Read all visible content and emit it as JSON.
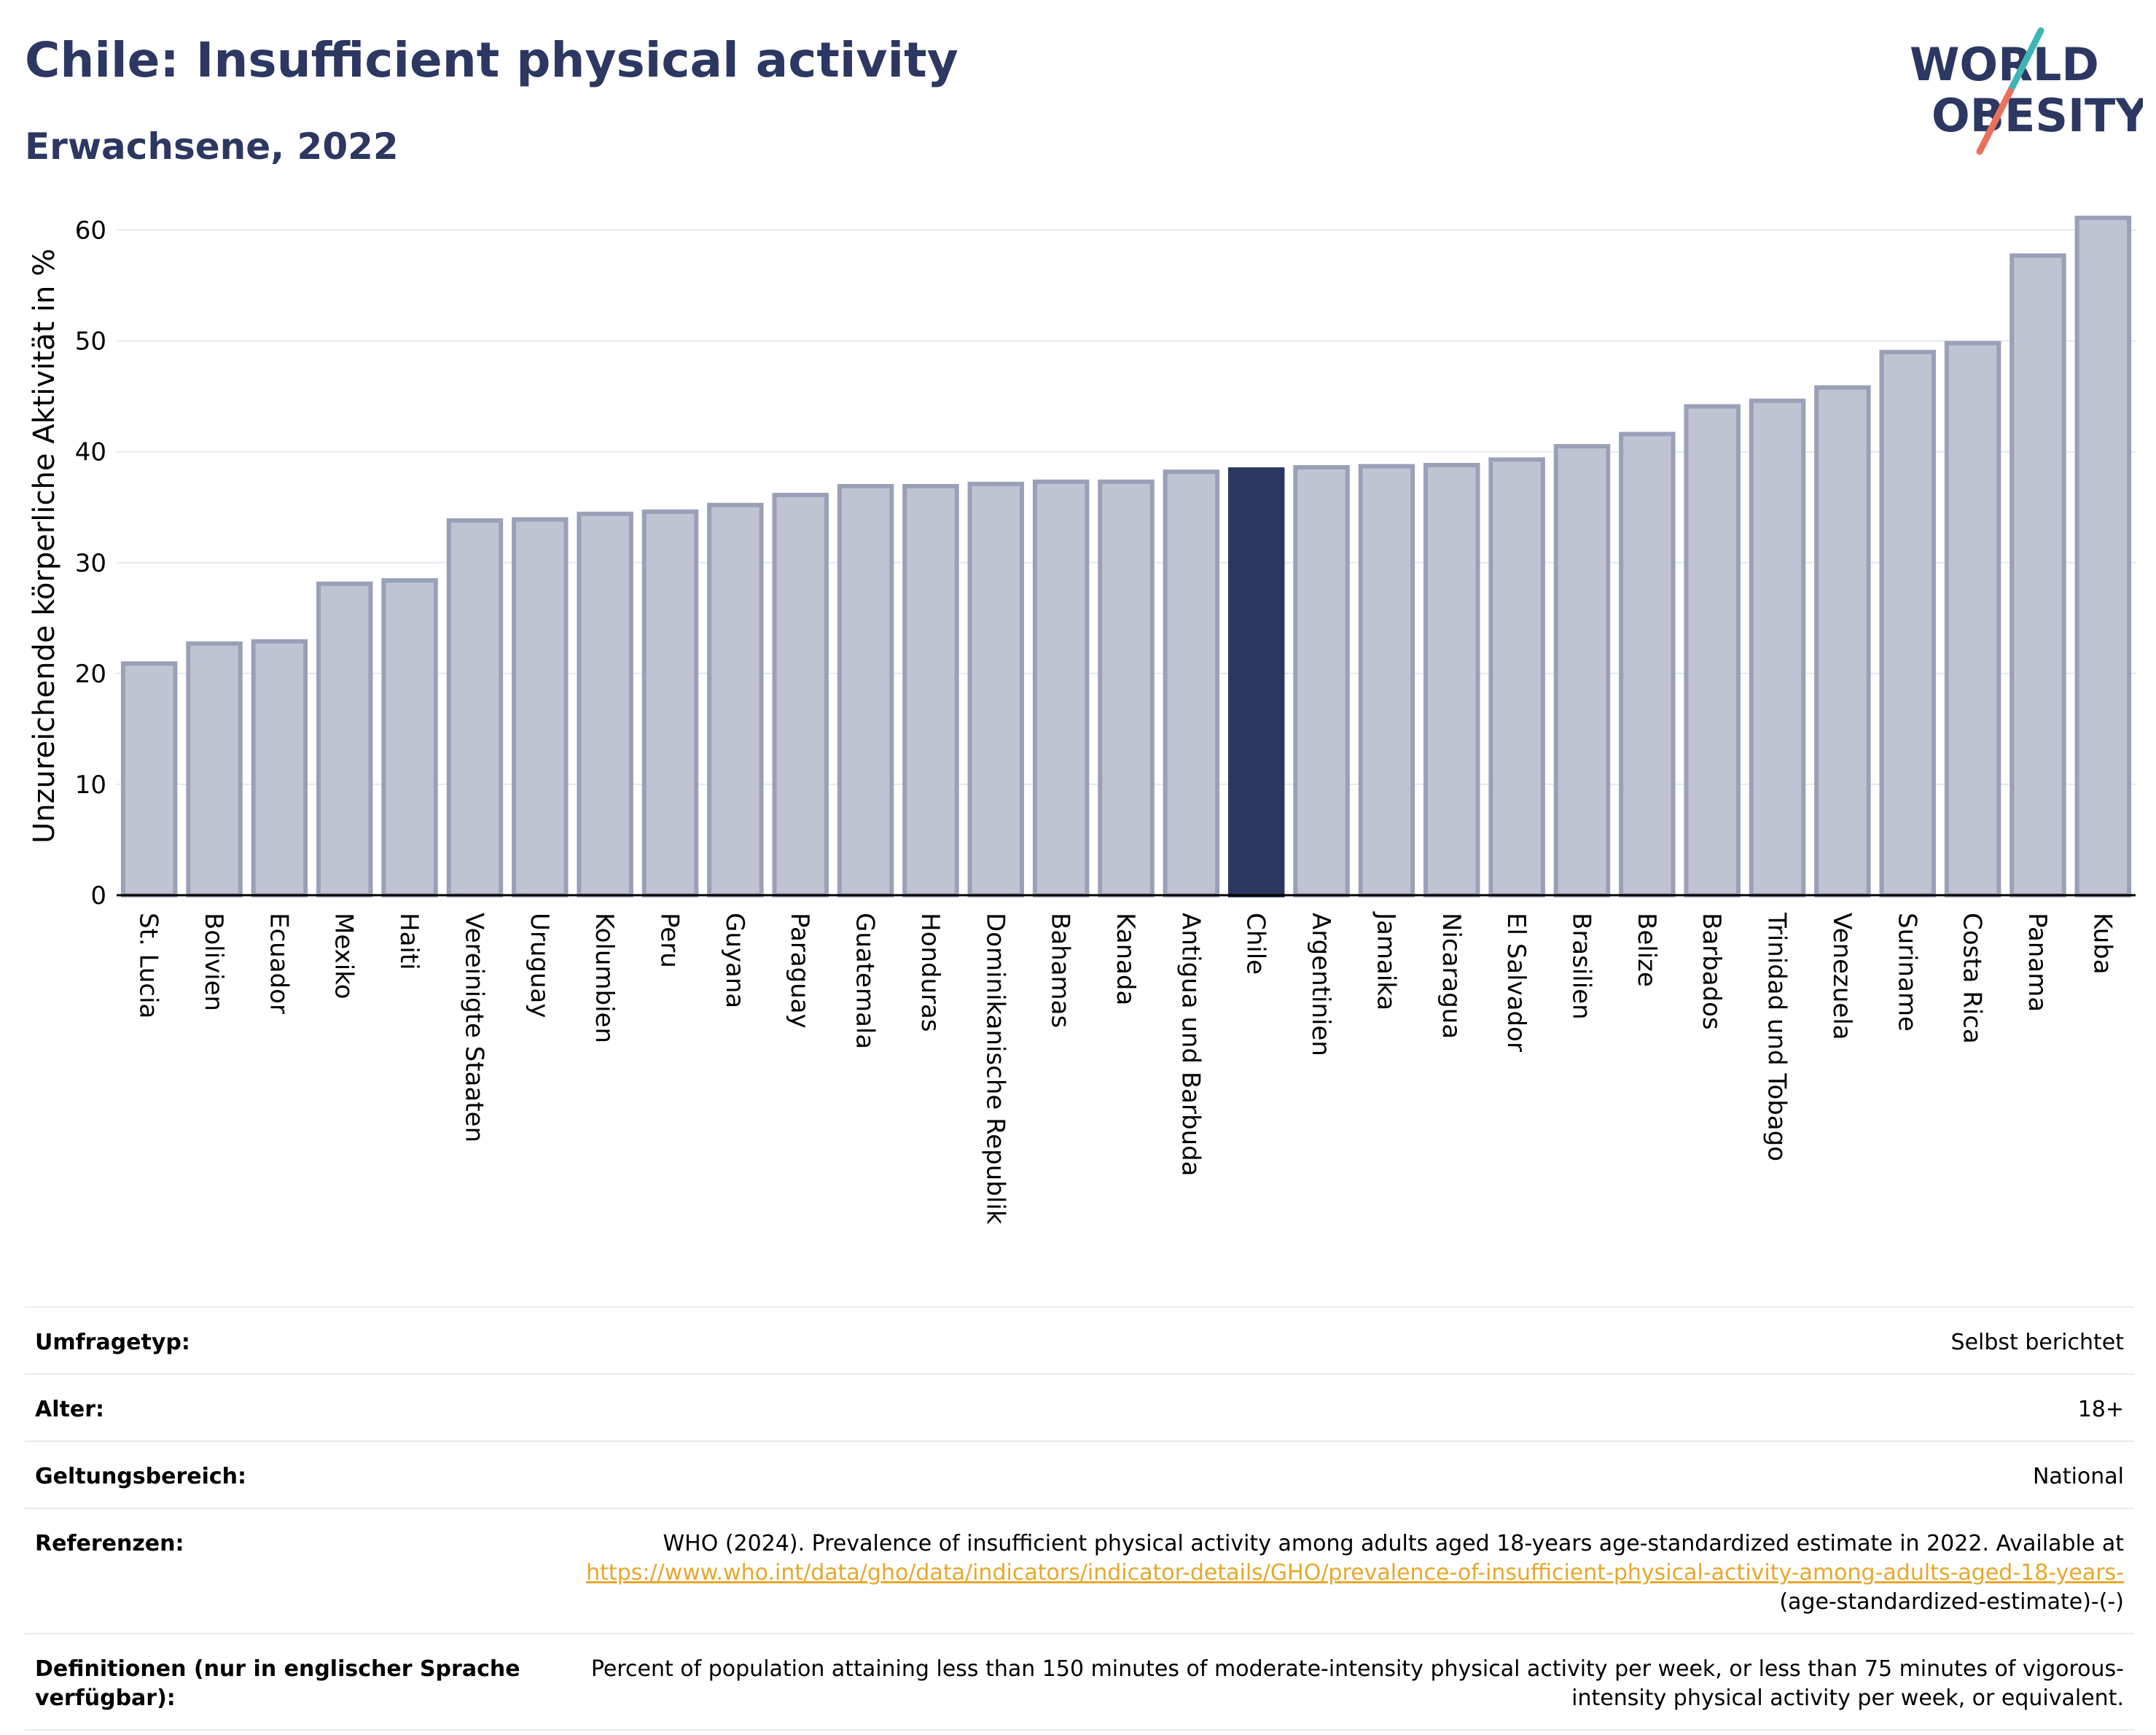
{
  "header": {
    "title": "Chile: Insufficient physical activity",
    "subtitle": "Erwachsene, 2022"
  },
  "logo": {
    "line1": "WORLD",
    "line2": "OBESITY",
    "text_color": "#2c3762",
    "slash_colors": [
      "#e9715b",
      "#3fb4b4"
    ]
  },
  "chart_data": {
    "type": "bar",
    "title": "",
    "xlabel": "",
    "ylabel": "Unzureichende körperliche Aktivität in %",
    "ylim": [
      0,
      63
    ],
    "yticks": [
      0,
      10,
      20,
      30,
      40,
      50,
      60
    ],
    "grid": true,
    "highlight": "Chile",
    "colors": {
      "default": "#c0c3d1",
      "default_stroke": "#9aa0b8",
      "highlight": "#2c3762"
    },
    "categories": [
      "St. Lucia",
      "Bolivien",
      "Ecuador",
      "Mexiko",
      "Haiti",
      "Vereinigte Staaten",
      "Uruguay",
      "Kolumbien",
      "Peru",
      "Guyana",
      "Paraguay",
      "Guatemala",
      "Honduras",
      "Dominikanische Republik",
      "Bahamas",
      "Kanada",
      "Antigua und Barbuda",
      "Chile",
      "Argentinien",
      "Jamaika",
      "Nicaragua",
      "El Salvador",
      "Brasilien",
      "Belize",
      "Barbados",
      "Trinidad und Tobago",
      "Venezuela",
      "Suriname",
      "Costa Rica",
      "Panama",
      "Kuba"
    ],
    "values": [
      20.9,
      22.7,
      22.9,
      28.1,
      28.4,
      33.8,
      33.9,
      34.4,
      34.6,
      35.2,
      36.1,
      36.9,
      36.9,
      37.1,
      37.3,
      37.3,
      38.2,
      38.4,
      38.6,
      38.7,
      38.8,
      39.3,
      40.5,
      41.6,
      44.1,
      44.6,
      45.8,
      49.0,
      49.8,
      57.7,
      61.1
    ]
  },
  "meta": {
    "rows": [
      {
        "label": "Umfragetyp:",
        "value": "Selbst berichtet"
      },
      {
        "label": "Alter:",
        "value": "18+"
      },
      {
        "label": "Geltungsbereich:",
        "value": "National"
      }
    ],
    "references": {
      "label": "Referenzen:",
      "text": "WHO (2024). Prevalence of insufficient physical activity among adults aged 18-years age-standardized estimate in 2022. Available at",
      "link": "https://www.who.int/data/gho/data/indicators/indicator-details/GHO/prevalence-of-insufficient-physical-activity-among-adults-aged-18-years-",
      "suffix": "(age-standardized-estimate)-(-)"
    },
    "definitions": {
      "label": "Definitionen (nur in englischer Sprache verfügbar):",
      "value": "Percent of population attaining less than 150 minutes of moderate-intensity physical activity per week, or less than 75 minutes of vigorous-intensity physical activity per week, or equivalent."
    }
  }
}
